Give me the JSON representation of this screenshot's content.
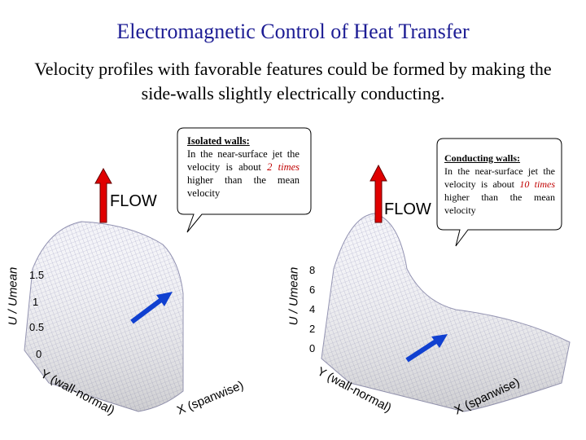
{
  "header": {
    "title": "Electromagnetic Control of Heat Transfer",
    "subtitle": "Velocity profiles with favorable features could be formed by making the side-walls slightly electrically conducting."
  },
  "panels": [
    {
      "flow_label": "FLOW",
      "callout": {
        "heading": "Isolated walls:",
        "text_before": "In the near-surface jet the velocity is about ",
        "emphasis": "2 times",
        "text_after": " higher than the mean velocity"
      },
      "axis_labels": {
        "vertical": "U / Umean",
        "wall_normal": "Y (wall-normal)",
        "spanwise": "X (spanwise)"
      },
      "ticks": [
        "1.5",
        "1",
        "0.5",
        "0"
      ]
    },
    {
      "flow_label": "FLOW",
      "callout": {
        "heading": "Conducting walls:",
        "text_before": "In the near-surface jet the velocity is about ",
        "emphasis": "10 times",
        "text_after": " higher than the mean velocity"
      },
      "axis_labels": {
        "vertical": "U / Umean",
        "wall_normal": "Y (wall-normal)",
        "spanwise": "X (spanwise)"
      },
      "ticks": [
        "8",
        "6",
        "4",
        "2",
        "0"
      ]
    }
  ]
}
